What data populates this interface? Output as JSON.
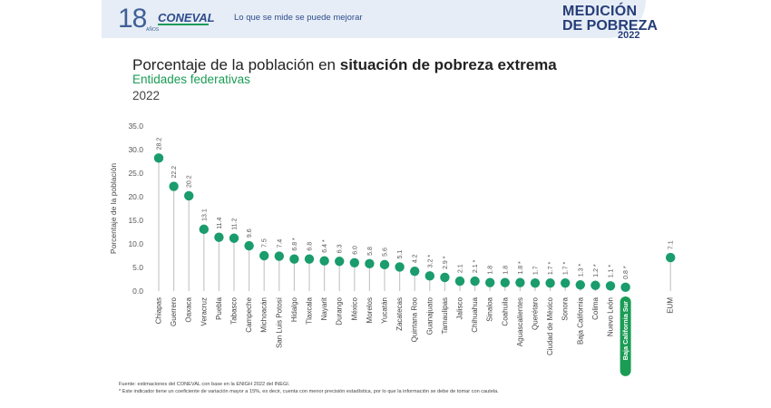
{
  "header": {
    "logo_number": "18",
    "logo_sub": "AÑOS",
    "brand": "CONEVAL",
    "tagline": "Lo que se mide se puede mejorar",
    "campaign_line1": "MEDICIÓN",
    "campaign_line2": "DE POBREZA",
    "campaign_year": "2022"
  },
  "footer": {
    "source": "Fuente: estimaciones del CONEVAL con base en la ENIGH 2022 del INEGI.",
    "note": "* Este indicador tiene un coeficiente de variación mayor a 15%, es decir, cuenta con menor precisión estadística, por lo que la información se debe de tomar con cautela."
  },
  "colors": {
    "marker": "#1a9c6c",
    "stem": "#c8c8c8",
    "highlight": "#1a9c55",
    "banner": "#e6edf6",
    "brand_blue": "#2e4c8c"
  },
  "chart_data": {
    "type": "scatter",
    "title_prefix": "Porcentaje de la población en ",
    "title_bold": "situación de pobreza extrema",
    "subtitle": "Entidades federativas",
    "period": "2022",
    "ylabel": "Porcentaje de la población",
    "ylim": [
      0,
      35
    ],
    "yticks": [
      "0.0",
      "5.0",
      "10.0",
      "15.0",
      "20.0",
      "25.0",
      "30.0",
      "35.0"
    ],
    "highlight_category": "Baja California Sur",
    "categories": [
      "Chiapas",
      "Guerrero",
      "Oaxaca",
      "Veracruz",
      "Puebla",
      "Tabasco",
      "Campeche",
      "Michoacán",
      "San Luis Potosí",
      "Hidalgo",
      "Tlaxcala",
      "Nayarit",
      "Durango",
      "México",
      "Morelos",
      "Yucatán",
      "Zacatecas",
      "Quintana Roo",
      "Guanajuato",
      "Tamaulipas",
      "Jalisco",
      "Chihuahua",
      "Sinaloa",
      "Coahuila",
      "Aguascalientes",
      "Querétaro",
      "Ciudad de México",
      "Sonora",
      "Baja California",
      "Colima",
      "Nuevo León",
      "Baja California Sur",
      "EUM"
    ],
    "values": [
      28.2,
      22.2,
      20.2,
      13.1,
      11.4,
      11.2,
      9.6,
      7.5,
      7.4,
      6.8,
      6.8,
      6.4,
      6.3,
      6.0,
      5.8,
      5.6,
      5.1,
      4.2,
      3.2,
      2.9,
      2.1,
      2.1,
      1.8,
      1.8,
      1.8,
      1.7,
      1.7,
      1.7,
      1.3,
      1.2,
      1.1,
      0.8,
      7.1
    ],
    "value_labels": [
      "28.2",
      "22.2",
      "20.2",
      "13.1",
      "11.4",
      "11.2",
      "9.6",
      "7.5",
      "7.4",
      "6.8 *",
      "6.8",
      "6.4 *",
      "6.3",
      "6.0",
      "5.8",
      "5.6",
      "5.1",
      "4.2",
      "3.2 *",
      "2.9 *",
      "2.1",
      "2.1 *",
      "1.8",
      "1.8",
      "1.8 *",
      "1.7",
      "1.7 *",
      "1.7 *",
      "1.3 *",
      "1.2 *",
      "1.1 *",
      "0.8 *",
      "7.1"
    ]
  }
}
